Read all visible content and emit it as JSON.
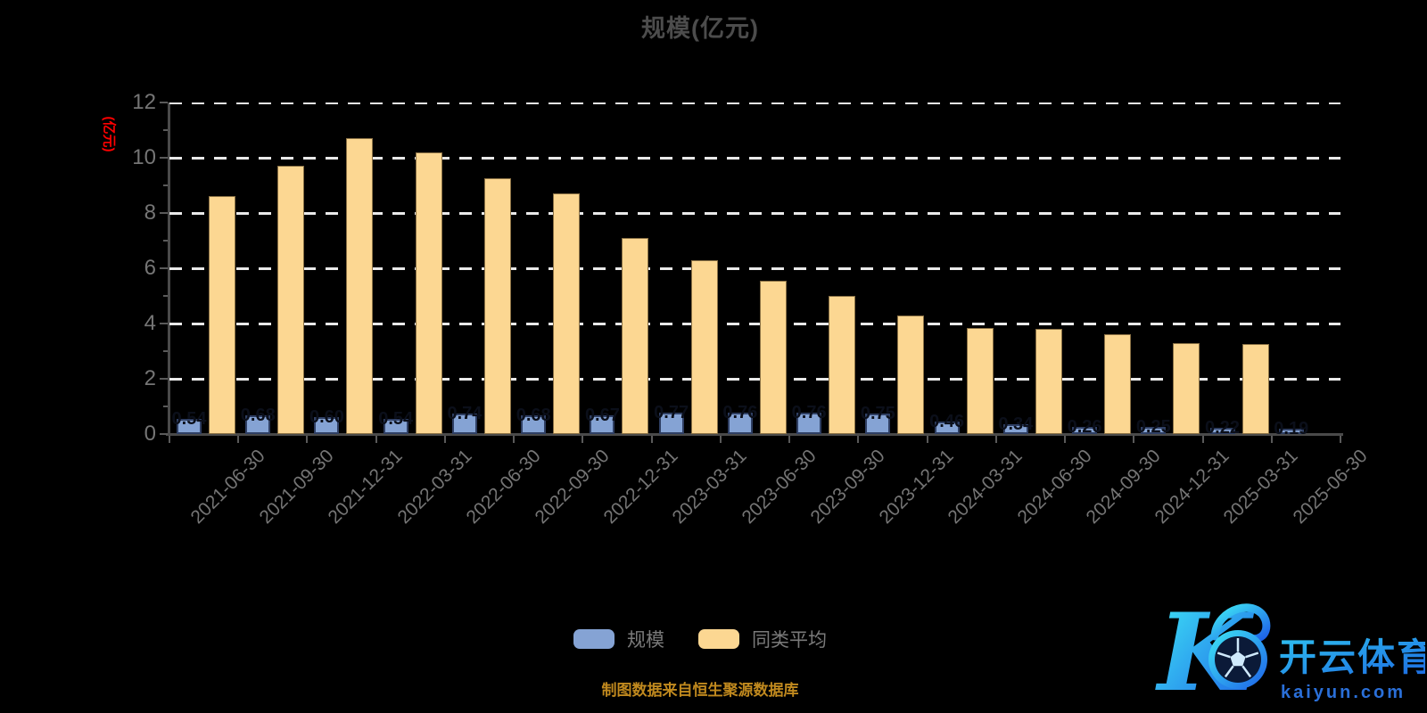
{
  "title": "规模(亿元)",
  "y_axis": {
    "unit_label": "(亿元)",
    "tick_labels": [
      "0",
      "2",
      "4",
      "6",
      "8",
      "10",
      "12"
    ]
  },
  "legend": {
    "items": [
      {
        "label": "规模",
        "color": "#85a3d4"
      },
      {
        "label": "同类平均",
        "color": "#fcd792"
      }
    ]
  },
  "source_note": "制图数据来自恒生聚源数据库",
  "watermark": {
    "letter": "K",
    "brand_cn": "开云体育",
    "brand_url": "kaiyun.com"
  },
  "colors": {
    "background": "#000000",
    "scale_bar": "#85a3d4",
    "peer_bar": "#fcd792",
    "title_text": "#4c4c4c",
    "axis_text": "#757575",
    "unit_label": "#ff0000",
    "gridline": "#e9e9e9",
    "note_text": "#c0891e"
  },
  "chart_data": {
    "type": "bar",
    "title": "规模(亿元)",
    "ylabel": "(亿元)",
    "ylim": [
      0,
      12
    ],
    "yticks": [
      0,
      2,
      4,
      6,
      8,
      10,
      12
    ],
    "grid": "dashed-horizontal-white",
    "legend_position": "bottom-center",
    "categories": [
      "2021-06-30",
      "2021-09-30",
      "2021-12-31",
      "2022-03-31",
      "2022-06-30",
      "2022-09-30",
      "2022-12-31",
      "2023-03-31",
      "2023-06-30",
      "2023-09-30",
      "2023-12-31",
      "2024-03-31",
      "2024-06-30",
      "2024-09-30",
      "2024-12-31",
      "2025-03-31",
      "2025-06-30"
    ],
    "series": [
      {
        "name": "规模",
        "color": "#85a3d4",
        "labels_visible": true,
        "values": [
          0.54,
          0.68,
          0.6,
          0.54,
          0.74,
          0.68,
          0.67,
          0.77,
          0.76,
          0.76,
          0.75,
          0.46,
          0.34,
          0.26,
          0.25,
          0.22,
          0.19
        ]
      },
      {
        "name": "同类平均",
        "color": "#fcd792",
        "labels_visible": false,
        "values": [
          8.6,
          9.7,
          10.7,
          10.2,
          9.25,
          8.7,
          7.1,
          6.3,
          5.55,
          5.0,
          4.3,
          3.85,
          3.8,
          3.6,
          3.3,
          3.25,
          null
        ]
      }
    ]
  }
}
